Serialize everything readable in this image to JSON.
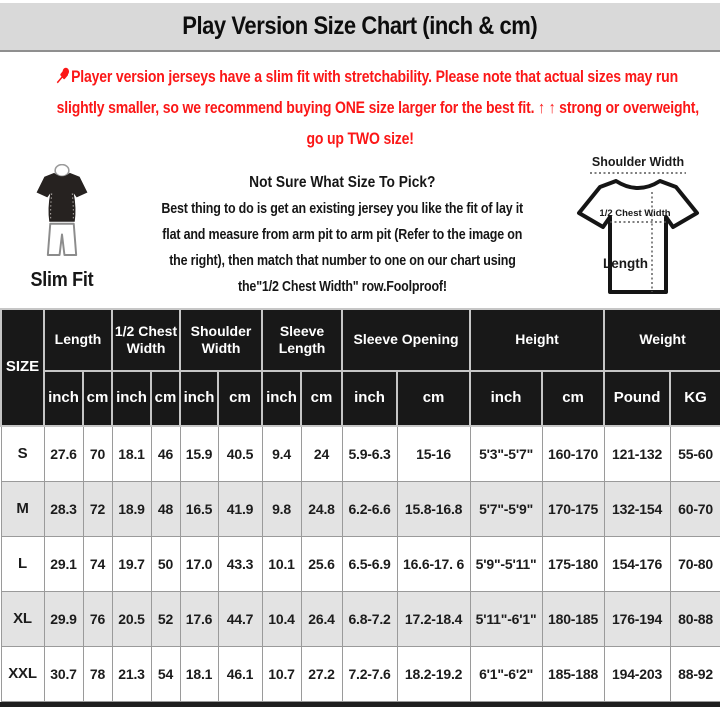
{
  "title": "Play Version Size Chart (inch & cm)",
  "colors": {
    "accent_red": "#fb1717",
    "header_bg": "#181818",
    "row_alt_bg": "#e3e3e3",
    "title_bar_bg": "#d9d9d9"
  },
  "warning": {
    "lines": [
      "Player version jerseys have a slim fit with stretchability. Please note that actual sizes may run",
      "slightly smaller, so we recommend buying ONE size larger for the best fit. ↑ ↑ strong or overweight,",
      "go up TWO size!"
    ]
  },
  "slim_fit": {
    "label": "Slim Fit"
  },
  "instructions": {
    "heading": "Not Sure What Size To Pick?",
    "lines": [
      "Best thing to do is get an existing jersey you like the fit of lay it",
      "flat and measure from arm pit to arm pit (Refer to the image on",
      "the right), then match that number to one on our chart using",
      "the\"1/2 Chest Width\" row.Foolproof!"
    ]
  },
  "diagram": {
    "shoulder_label": "Shoulder Width",
    "chest_label": "1/2 Chest Width",
    "length_label": "Length"
  },
  "table": {
    "size_header": "SIZE",
    "groups": [
      {
        "label": "Length",
        "units": [
          "inch",
          "cm"
        ]
      },
      {
        "label": "1/2 Chest Width",
        "units": [
          "inch",
          "cm"
        ]
      },
      {
        "label": "Shoulder Width",
        "units": [
          "inch",
          "cm"
        ]
      },
      {
        "label": "Sleeve Length",
        "units": [
          "inch",
          "cm"
        ]
      },
      {
        "label": "Sleeve Opening",
        "units": [
          "inch",
          "cm"
        ]
      },
      {
        "label": "Height",
        "units": [
          "inch",
          "cm"
        ]
      },
      {
        "label": "Weight",
        "units": [
          "Pound",
          "KG"
        ]
      }
    ],
    "rows": [
      {
        "size": "S",
        "cells": [
          "27.6",
          "70",
          "18.1",
          "46",
          "15.9",
          "40.5",
          "9.4",
          "24",
          "5.9-6.3",
          "15-16",
          "5'3\"-5'7\"",
          "160-170",
          "121-132",
          "55-60"
        ]
      },
      {
        "size": "M",
        "cells": [
          "28.3",
          "72",
          "18.9",
          "48",
          "16.5",
          "41.9",
          "9.8",
          "24.8",
          "6.2-6.6",
          "15.8-16.8",
          "5'7\"-5'9\"",
          "170-175",
          "132-154",
          "60-70"
        ]
      },
      {
        "size": "L",
        "cells": [
          "29.1",
          "74",
          "19.7",
          "50",
          "17.0",
          "43.3",
          "10.1",
          "25.6",
          "6.5-6.9",
          "16.6-17. 6",
          "5'9\"-5'11\"",
          "175-180",
          "154-176",
          "70-80"
        ]
      },
      {
        "size": "XL",
        "cells": [
          "29.9",
          "76",
          "20.5",
          "52",
          "17.6",
          "44.7",
          "10.4",
          "26.4",
          "6.8-7.2",
          "17.2-18.4",
          "5'11\"-6'1\"",
          "180-185",
          "176-194",
          "80-88"
        ]
      },
      {
        "size": "XXL",
        "cells": [
          "30.7",
          "78",
          "21.3",
          "54",
          "18.1",
          "46.1",
          "10.7",
          "27.2",
          "7.2-7.6",
          "18.2-19.2",
          "6'1\"-6'2\"",
          "185-188",
          "194-203",
          "88-92"
        ]
      }
    ]
  }
}
